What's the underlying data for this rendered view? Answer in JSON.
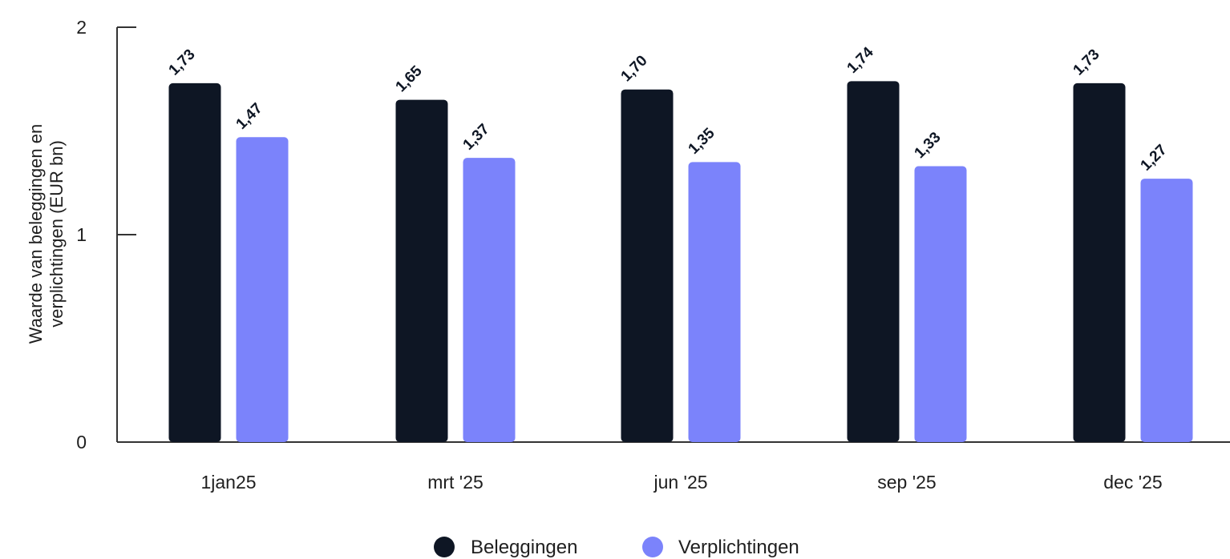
{
  "chart_data": {
    "type": "bar",
    "categories": [
      "1jan25",
      "mrt '25",
      "jun '25",
      "sep '25",
      "dec '25"
    ],
    "series": [
      {
        "name": "Beleggingen",
        "color": "#0e1624",
        "values": [
          1.73,
          1.65,
          1.7,
          1.74,
          1.73
        ],
        "labels": [
          "1,73",
          "1,65",
          "1,70",
          "1,74",
          "1,73"
        ]
      },
      {
        "name": "Verplichtingen",
        "color": "#7b83fb",
        "values": [
          1.47,
          1.37,
          1.35,
          1.33,
          1.27
        ],
        "labels": [
          "1,47",
          "1,37",
          "1,35",
          "1,33",
          "1,27"
        ]
      }
    ],
    "ylabel_lines": [
      "Waarde van beleggingen en",
      "verplichtingen (EUR bn)"
    ],
    "ylim": [
      0,
      2
    ],
    "yticks": [
      "0",
      "1",
      "2"
    ],
    "grid": false,
    "legend_position": "bottom-center"
  }
}
